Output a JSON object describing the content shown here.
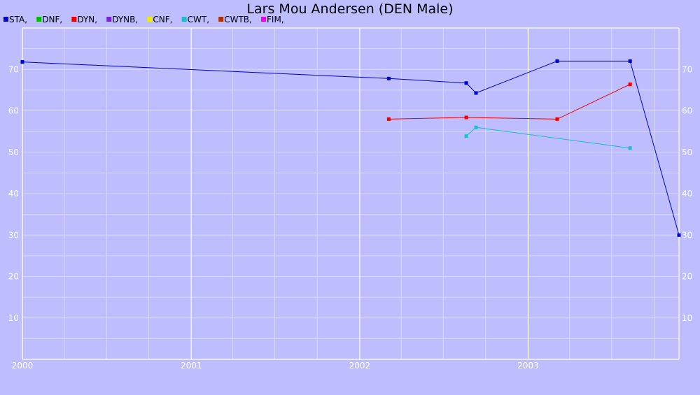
{
  "chart_data": {
    "type": "line",
    "title": "Lars Mou Andersen (DEN Male)",
    "legend": [
      {
        "name": "STA",
        "color": "#0000cc"
      },
      {
        "name": "DNF",
        "color": "#00bb00"
      },
      {
        "name": "DYN",
        "color": "#ee0000"
      },
      {
        "name": "DYNB",
        "color": "#7722dd"
      },
      {
        "name": "CNF",
        "color": "#eeee00"
      },
      {
        "name": "CWT",
        "color": "#22bbcc"
      },
      {
        "name": "CWTB",
        "color": "#aa3300"
      },
      {
        "name": "FIM",
        "color": "#ee00ee"
      }
    ],
    "legend_position": "top-left",
    "legend_separator": ",",
    "x_axis": {
      "type": "date",
      "range": [
        "2000-01-01",
        "2003-11-24"
      ],
      "tick_labels": [
        "2000",
        "2001",
        "2002",
        "2003"
      ],
      "tick_values": [
        "2000-01-01",
        "2001-01-01",
        "2002-01-01",
        "2003-01-01"
      ]
    },
    "y_axis": {
      "range": [
        0,
        80
      ],
      "tick_values": [
        10,
        20,
        30,
        40,
        50,
        60,
        70
      ],
      "tick_labels": [
        "10",
        "20",
        "30",
        "40",
        "50",
        "60",
        "70"
      ],
      "mirrored_right": true
    },
    "grid": true,
    "series": [
      {
        "name": "STA",
        "color": "#0000cc",
        "points": [
          {
            "x": "2000-01-01",
            "y": 71.8
          },
          {
            "x": "2002-03-05",
            "y": 67.8
          },
          {
            "x": "2002-08-20",
            "y": 66.7
          },
          {
            "x": "2002-09-10",
            "y": 64.3
          },
          {
            "x": "2003-03-05",
            "y": 72.0
          },
          {
            "x": "2003-08-10",
            "y": 72.0
          },
          {
            "x": "2003-11-24",
            "y": 30.0
          }
        ]
      },
      {
        "name": "DYN",
        "color": "#ee0000",
        "points": [
          {
            "x": "2002-03-05",
            "y": 58.0
          },
          {
            "x": "2002-08-20",
            "y": 58.4
          },
          {
            "x": "2003-03-05",
            "y": 58.0
          },
          {
            "x": "2003-08-10",
            "y": 66.4
          }
        ]
      },
      {
        "name": "CWT",
        "color": "#22bbcc",
        "points": [
          {
            "x": "2002-08-20",
            "y": 53.9
          },
          {
            "x": "2002-09-10",
            "y": 56.0
          },
          {
            "x": "2003-08-10",
            "y": 51.0
          }
        ]
      }
    ]
  }
}
